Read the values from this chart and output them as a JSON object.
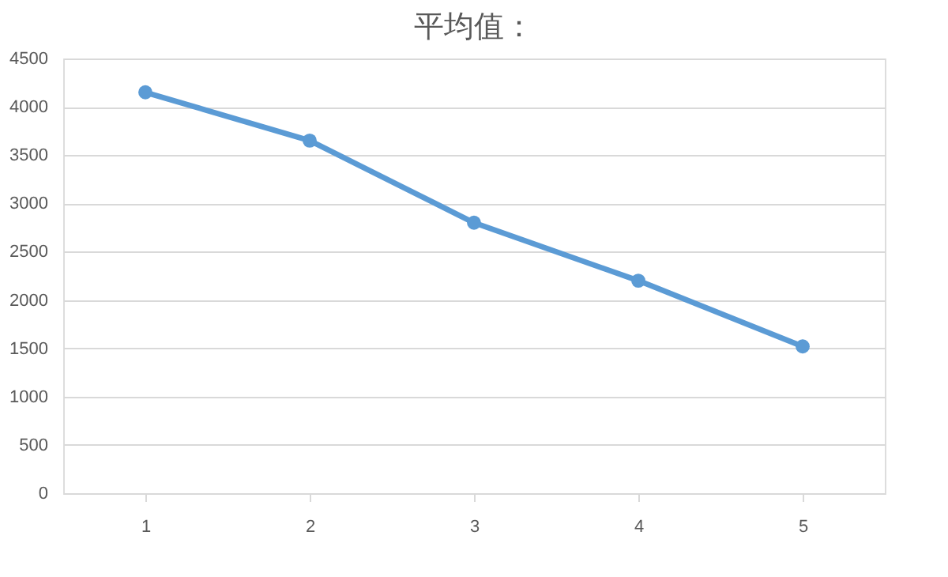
{
  "chart_data": {
    "type": "line",
    "title": "平均值：",
    "categories": [
      "1",
      "2",
      "3",
      "4",
      "5"
    ],
    "series": [
      {
        "color": "#5b9bd5",
        "values": [
          4150,
          3650,
          2800,
          2200,
          1520
        ]
      }
    ],
    "ylim": [
      0,
      4500
    ],
    "yticks": [
      0,
      500,
      1000,
      1500,
      2000,
      2500,
      3000,
      3500,
      4000,
      4500
    ],
    "grid": "y",
    "marker": "circle",
    "line_style": "solid"
  }
}
